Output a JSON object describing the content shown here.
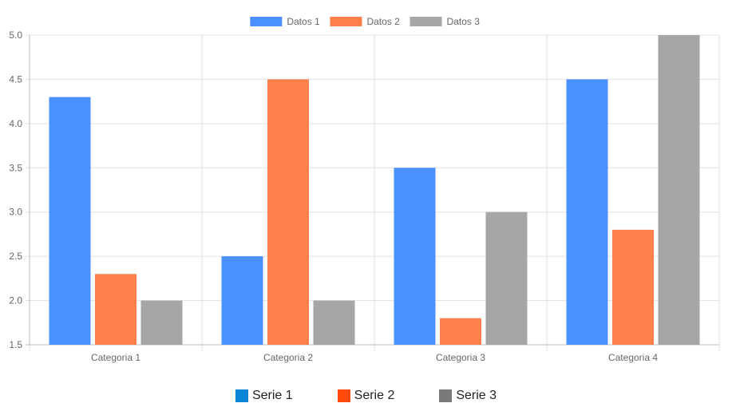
{
  "chart_data": {
    "type": "bar",
    "categories": [
      "Categoria 1",
      "Categoria 2",
      "Categoria 3",
      "Categoria 4"
    ],
    "series": [
      {
        "name": "Datos 1",
        "color": "#4a90ff",
        "values": [
          4.3,
          2.5,
          3.5,
          4.5
        ]
      },
      {
        "name": "Datos 2",
        "color": "#ff7f4a",
        "values": [
          2.3,
          4.5,
          1.8,
          2.8
        ]
      },
      {
        "name": "Datos 3",
        "color": "#a6a6a6",
        "values": [
          2.0,
          2.0,
          3.0,
          5.0
        ]
      }
    ],
    "ylim": [
      1.5,
      5.0
    ],
    "yticks": [
      "5.0",
      "4.5",
      "4.0",
      "3.5",
      "3.0",
      "2.5",
      "2.0",
      "1.5"
    ],
    "grid": true,
    "legend_position": "top-center"
  },
  "bottom_legend": {
    "items": [
      {
        "label": "Serie 1",
        "color": "#0a84d6"
      },
      {
        "label": "Serie 2",
        "color": "#ff4a0a"
      },
      {
        "label": "Serie 3",
        "color": "#7a7a7a"
      }
    ]
  }
}
